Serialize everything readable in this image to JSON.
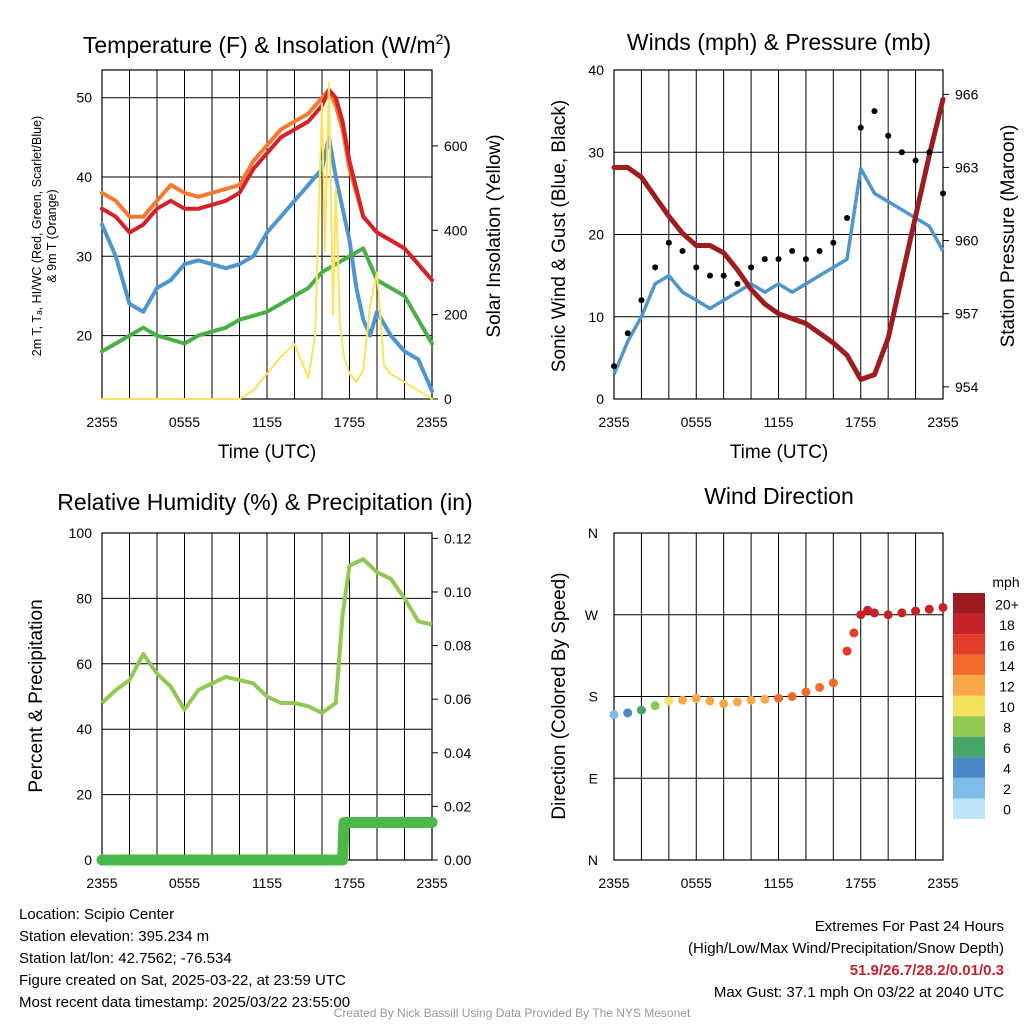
{
  "chart_data": [
    {
      "type": "line",
      "title": "Temperature (F) & Insolation (W/m",
      "title_sup": "2",
      "title_end": ")",
      "xlabel": "Time (UTC)",
      "ylabel_left": [
        "2m T, Tₐ, HI/WC (Red, Green, Scarlet/Blue)",
        "& 9m T (Orange)"
      ],
      "ylabel_right": "Solar Insolation (Yellow)",
      "x_ticks": [
        "2355",
        "0555",
        "1155",
        "1755",
        "2355"
      ],
      "y_left_ticks": [
        20,
        30,
        40,
        50
      ],
      "y_left_range": [
        12,
        53.5
      ],
      "y_right_ticks": [
        0,
        200,
        400,
        600
      ],
      "y_right_range": [
        0,
        780
      ],
      "x_range_hours": [
        0,
        24
      ],
      "series": [
        {
          "color": "#f47a30",
          "axis": "left",
          "x": [
            0,
            1,
            2,
            3,
            4,
            5,
            6,
            7,
            8,
            9,
            10,
            11,
            12,
            13,
            14,
            15,
            16,
            16.5,
            17,
            17.5,
            18,
            19,
            20,
            21,
            22,
            23,
            24
          ],
          "y": [
            38,
            37,
            35,
            35,
            37,
            39,
            38,
            37.5,
            38,
            38.5,
            39,
            42,
            44,
            46,
            47,
            48,
            50,
            51,
            49,
            46,
            41,
            35,
            33,
            32,
            31,
            29,
            27
          ]
        },
        {
          "color": "#d72027",
          "axis": "left",
          "x": [
            0,
            1,
            2,
            3,
            4,
            5,
            6,
            7,
            8,
            9,
            10,
            11,
            12,
            13,
            14,
            15,
            16,
            16.5,
            17,
            17.5,
            18,
            19,
            20,
            21,
            22,
            23,
            24
          ],
          "y": [
            36,
            35,
            33,
            34,
            36,
            37,
            36,
            36,
            36.5,
            37,
            38,
            41,
            43,
            45,
            46,
            47,
            49,
            51,
            50,
            47,
            42,
            35,
            33,
            32,
            31,
            29,
            27
          ]
        },
        {
          "color": "#4f96cf",
          "axis": "left",
          "x": [
            0,
            1,
            2,
            3,
            4,
            5,
            6,
            7,
            8,
            9,
            10,
            11,
            12,
            13,
            14,
            15,
            16,
            16.5,
            17,
            18,
            18.5,
            19,
            19.5,
            20,
            21,
            22,
            23,
            24
          ],
          "y": [
            34,
            30,
            24,
            23,
            26,
            27,
            29,
            29.5,
            29,
            28.5,
            29,
            30,
            33,
            35,
            37,
            39,
            41,
            45,
            40,
            32,
            26,
            22,
            20,
            23,
            20,
            18,
            17,
            13
          ]
        },
        {
          "color": "#4aaf47",
          "axis": "left",
          "x": [
            0,
            1,
            2,
            3,
            4,
            5,
            6,
            7,
            8,
            9,
            10,
            11,
            12,
            13,
            14,
            15,
            16,
            17,
            18,
            19,
            20,
            21,
            22,
            23,
            24
          ],
          "y": [
            18,
            19,
            20,
            21,
            20,
            19.5,
            19,
            20,
            20.5,
            21,
            22,
            22.5,
            23,
            24,
            25,
            26,
            28,
            29,
            30,
            31,
            27,
            26,
            25,
            22,
            19
          ]
        },
        {
          "color": "#fde25b",
          "axis": "right",
          "x": [
            0,
            10,
            11,
            12,
            13,
            14,
            14.5,
            15,
            15.5,
            16,
            16.2,
            16.5,
            16.8,
            17,
            17.3,
            17.6,
            18,
            18.5,
            19,
            19.5,
            20,
            20.5,
            21,
            22,
            23,
            24
          ],
          "y": [
            0,
            0,
            20,
            60,
            100,
            130,
            90,
            50,
            150,
            700,
            350,
            750,
            200,
            500,
            180,
            100,
            60,
            40,
            70,
            220,
            300,
            80,
            60,
            40,
            20,
            0
          ]
        }
      ]
    },
    {
      "type": "line",
      "title": "Winds (mph) & Pressure (mb)",
      "xlabel": "Time (UTC)",
      "ylabel_left": "Sonic Wind & Gust (Blue, Black)",
      "ylabel_right": "Station Pressure (Maroon)",
      "x_ticks": [
        "2355",
        "0555",
        "1155",
        "1755",
        "2355"
      ],
      "y_left_ticks": [
        0,
        10,
        20,
        30,
        40
      ],
      "y_left_range": [
        0,
        40
      ],
      "y_right_ticks": [
        954,
        957,
        960,
        963,
        966
      ],
      "y_right_range": [
        953.5,
        967
      ],
      "series": [
        {
          "name": "wind",
          "color": "#4f96cf",
          "x": [
            0,
            1,
            2,
            3,
            4,
            5,
            6,
            7,
            8,
            9,
            10,
            11,
            12,
            13,
            14,
            15,
            16,
            17,
            18,
            19,
            20,
            21,
            22,
            23,
            24
          ],
          "y": [
            3,
            7,
            10,
            14,
            15,
            13,
            12,
            11,
            12,
            13,
            14,
            13,
            14,
            13,
            14,
            15,
            16,
            17,
            28,
            25,
            24,
            23,
            22,
            21,
            18
          ]
        },
        {
          "name": "pressure",
          "color": "#9e1b1f",
          "x": [
            0,
            1,
            2,
            3,
            4,
            5,
            6,
            7,
            8,
            9,
            10,
            11,
            12,
            13,
            14,
            15,
            16,
            17,
            18,
            19,
            20,
            21,
            22,
            23,
            24
          ],
          "y": [
            963,
            963,
            962.6,
            961.8,
            961,
            960.3,
            959.8,
            959.8,
            959.5,
            958.8,
            958,
            957.4,
            957,
            956.8,
            956.6,
            956.2,
            955.8,
            955.3,
            954.3,
            954.5,
            956,
            958.5,
            961,
            963.5,
            965.8
          ]
        },
        {
          "name": "gust",
          "color": "#000000",
          "x": [
            0,
            1,
            2,
            3,
            4,
            5,
            6,
            7,
            8,
            9,
            10,
            11,
            12,
            13,
            14,
            15,
            16,
            17,
            18,
            19,
            20,
            21,
            22,
            23,
            24
          ],
          "y": [
            4,
            8,
            12,
            16,
            19,
            18,
            16,
            15,
            15,
            14,
            16,
            17,
            17,
            18,
            17,
            18,
            19,
            22,
            33,
            35,
            32,
            30,
            29,
            30,
            25
          ]
        }
      ]
    },
    {
      "type": "line",
      "title": "Relative Humidity (%) & Precipitation (in)",
      "ylabel_left": "Percent & Precipitation",
      "x_ticks": [
        "2355",
        "0555",
        "1155",
        "1755",
        "2355"
      ],
      "y_left_ticks": [
        0,
        20,
        40,
        60,
        80,
        100
      ],
      "y_left_range": [
        0,
        100
      ],
      "y_right_ticks": [
        "0.00",
        "0.02",
        "0.04",
        "0.06",
        "0.08",
        "0.10",
        "0.12"
      ],
      "y_right_range": [
        0,
        0.122
      ],
      "series": [
        {
          "name": "rh",
          "color": "#93c853",
          "x": [
            0,
            1,
            2,
            3,
            4,
            5,
            6,
            7,
            8,
            9,
            10,
            11,
            12,
            13,
            14,
            15,
            16,
            17,
            17.5,
            18,
            19,
            20,
            21,
            22,
            23,
            24
          ],
          "y": [
            48,
            52,
            55,
            63,
            57,
            53,
            46,
            52,
            54,
            56,
            55,
            54,
            50,
            48,
            48,
            47,
            45,
            48,
            75,
            90,
            92,
            88,
            86,
            80,
            73,
            72
          ]
        },
        {
          "name": "precipitation",
          "color": "#4cb84a",
          "axis": "right",
          "x": [
            0,
            17.5,
            17.6,
            24
          ],
          "y": [
            0,
            0,
            0.014,
            0.014
          ]
        }
      ]
    },
    {
      "type": "scatter",
      "title": "Wind Direction",
      "ylabel_left": "Direction (Colored By Speed)",
      "x_ticks": [
        "2355",
        "0555",
        "1155",
        "1755",
        "2355"
      ],
      "y_ticks": [
        "N",
        "E",
        "S",
        "W",
        "N"
      ],
      "y_range": [
        0,
        360
      ],
      "colorbar_title": "mph",
      "colorbar_labels": [
        "20+",
        "18",
        "16",
        "14",
        "12",
        "10",
        "8",
        "6",
        "4",
        "2",
        "0"
      ],
      "colorbar_colors": [
        "#9c1c1f",
        "#c4232a",
        "#e23d2a",
        "#f26b2e",
        "#f9a847",
        "#f5e15d",
        "#93c853",
        "#46a66a",
        "#4a88c5",
        "#7fbbe6",
        "#bfe5f7"
      ],
      "x": [
        0,
        1,
        2,
        3,
        4,
        5,
        6,
        7,
        8,
        9,
        10,
        11,
        12,
        13,
        14,
        15,
        16,
        17,
        17.5,
        18,
        18.5,
        19,
        20,
        21,
        22,
        23,
        24
      ],
      "y": [
        160,
        162,
        165,
        170,
        175,
        176,
        178,
        175,
        172,
        174,
        176,
        177,
        178,
        180,
        185,
        190,
        195,
        230,
        250,
        270,
        275,
        272,
        270,
        272,
        274,
        276,
        278
      ],
      "speed": [
        3,
        4,
        6,
        8,
        10,
        12,
        13,
        12,
        12,
        13,
        13,
        13,
        14,
        14,
        14,
        15,
        15,
        16,
        17,
        18,
        19,
        19,
        18,
        18,
        18,
        19,
        19
      ]
    }
  ],
  "info": {
    "location": "Location: Scipio Center",
    "elevation": "Station elevation: 395.234 m",
    "latlon": "Station lat/lon: 42.7562; -76.534",
    "created": "Figure created on Sat, 2025-03-22, at 23:59 UTC",
    "recent": "Most recent data timestamp: 2025/03/22 23:55:00"
  },
  "extremes": {
    "title": "Extremes For Past 24 Hours",
    "subtitle": "(High/Low/Max Wind/Precipitation/Snow Depth)",
    "values": "51.9/26.7/28.2/0.01/0.3",
    "gust": "Max Gust: 37.1 mph On 03/22 at 2040 UTC"
  },
  "credit": "Created By Nick Bassill Using Data Provided By The NYS Mesonet"
}
